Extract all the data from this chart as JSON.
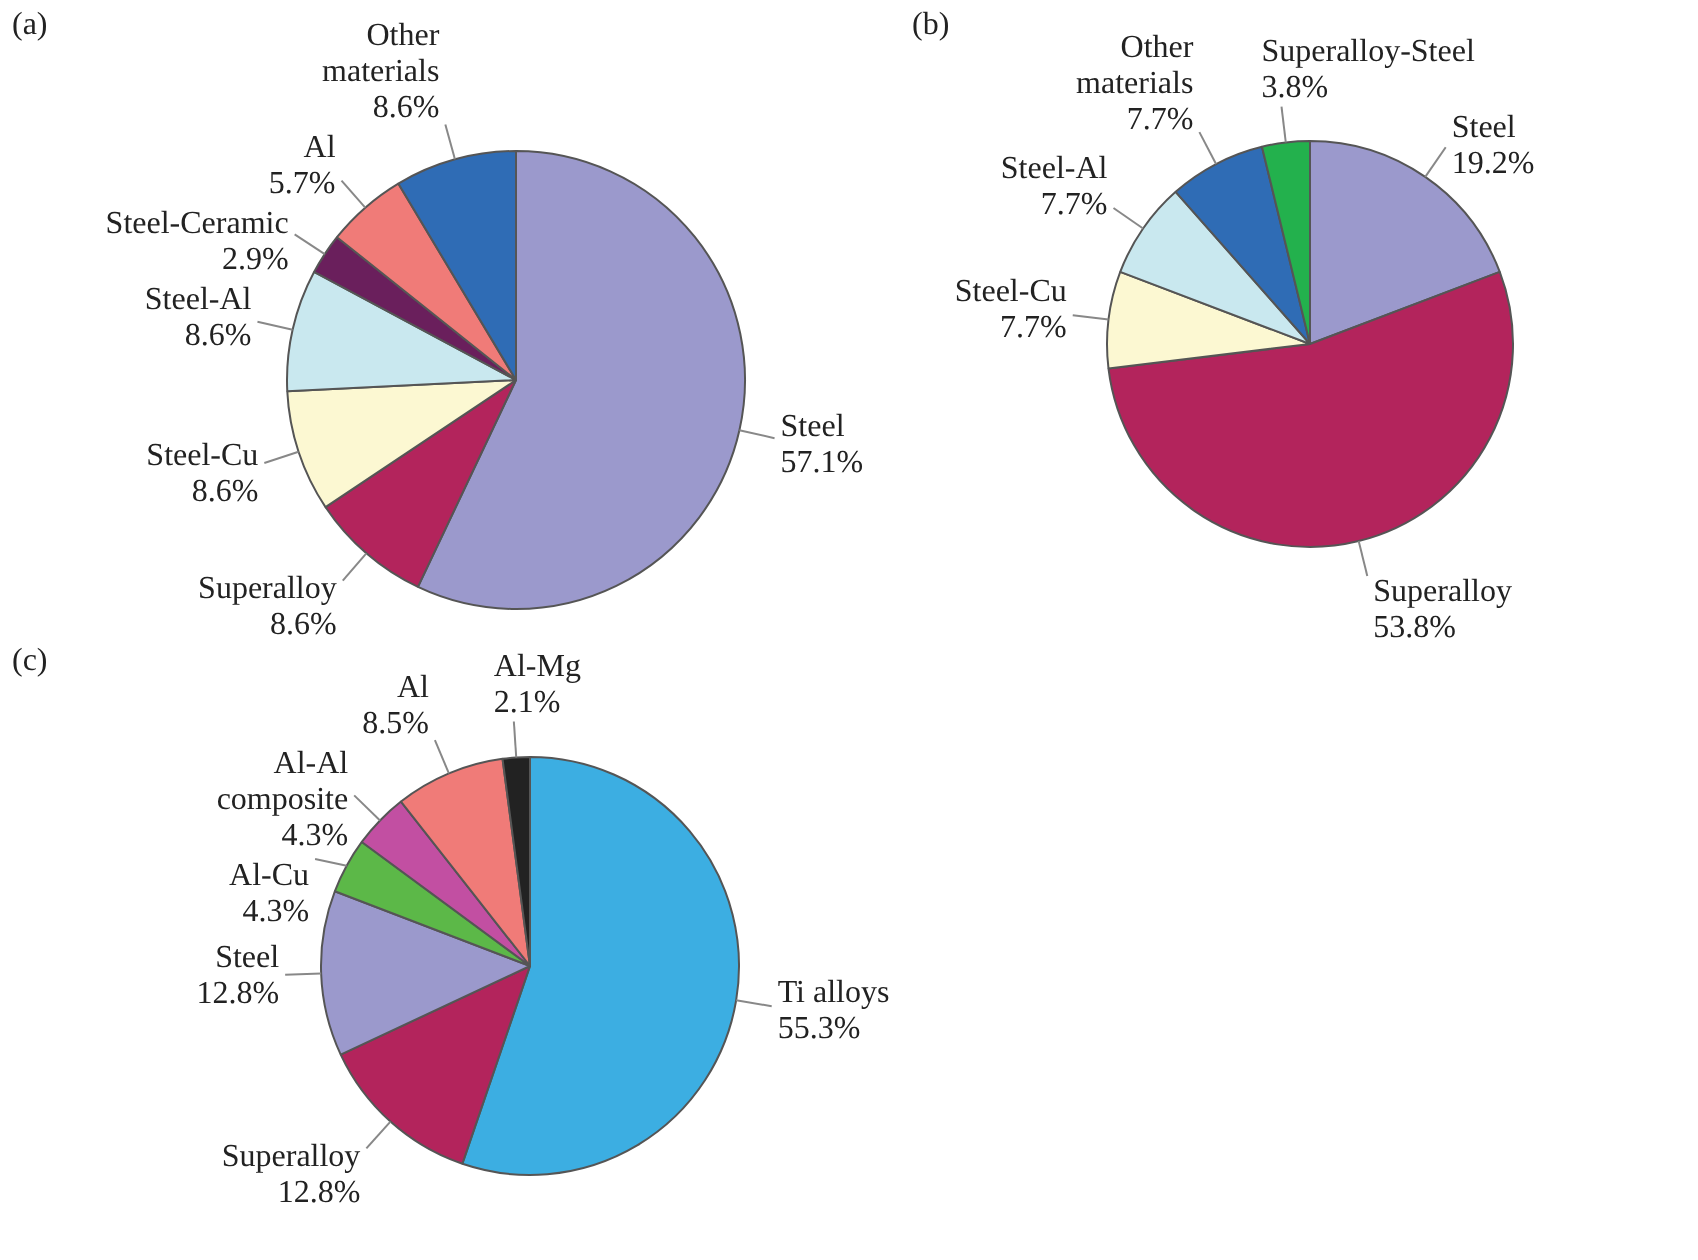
{
  "chart_data": [
    {
      "type": "pie",
      "title": "(a)",
      "categories": [
        "Steel",
        "Superalloy",
        "Steel-Cu",
        "Steel-Al",
        "Steel-Ceramic",
        "Al",
        "Other materials"
      ],
      "values": [
        57.1,
        8.6,
        8.6,
        8.6,
        2.9,
        5.7,
        8.6
      ],
      "value_labels": [
        "57.1%",
        "8.6%",
        "8.6%",
        "8.6%",
        "2.9%",
        "5.7%",
        "8.6%"
      ],
      "colors": [
        "#9b99cc",
        "#b3245c",
        "#fcf8d2",
        "#c9e8ef",
        "#6a1f5c",
        "#f07b78",
        "#2f6cb5"
      ]
    },
    {
      "type": "pie",
      "title": "(b)",
      "categories": [
        "Steel",
        "Superalloy",
        "Steel-Cu",
        "Steel-Al",
        "Other materials",
        "Superalloy-Steel"
      ],
      "values": [
        19.2,
        53.8,
        7.7,
        7.7,
        7.7,
        3.8
      ],
      "value_labels": [
        "19.2%",
        "53.8%",
        "7.7%",
        "7.7%",
        "7.7%",
        "3.8%"
      ],
      "colors": [
        "#9b99cc",
        "#b3245c",
        "#fcf8d2",
        "#c9e8ef",
        "#2f6cb5",
        "#23b14d"
      ]
    },
    {
      "type": "pie",
      "title": "(c)",
      "categories": [
        "Ti alloys",
        "Superalloy",
        "Steel",
        "Al-Cu",
        "Al-Al composite",
        "Al",
        "Al-Mg"
      ],
      "values": [
        55.3,
        12.8,
        12.8,
        4.3,
        4.3,
        8.5,
        2.1
      ],
      "value_labels": [
        "55.3%",
        "12.8%",
        "12.8%",
        "4.3%",
        "4.3%",
        "8.5%",
        "2.1%"
      ],
      "colors": [
        "#3caee2",
        "#b3245c",
        "#9b99cc",
        "#5cb848",
        "#c24fa2",
        "#f07b78",
        "#222222"
      ]
    }
  ]
}
